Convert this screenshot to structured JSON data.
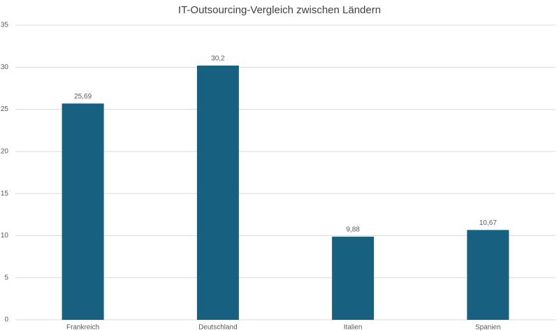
{
  "chart_data": {
    "type": "bar",
    "title": "IT-Outsourcing-Vergleich zwischen Ländern",
    "categories": [
      "Frankreich",
      "Deutschland",
      "Italien",
      "Spanien"
    ],
    "values": [
      25.69,
      30.2,
      9.88,
      10.67
    ],
    "value_labels": [
      "25,69",
      "30,2",
      "9,88",
      "10,67"
    ],
    "color": "#17607f",
    "ylim": [
      0,
      35
    ],
    "yticks": [
      0,
      5,
      10,
      15,
      20,
      25,
      30,
      35
    ],
    "grid": true
  }
}
